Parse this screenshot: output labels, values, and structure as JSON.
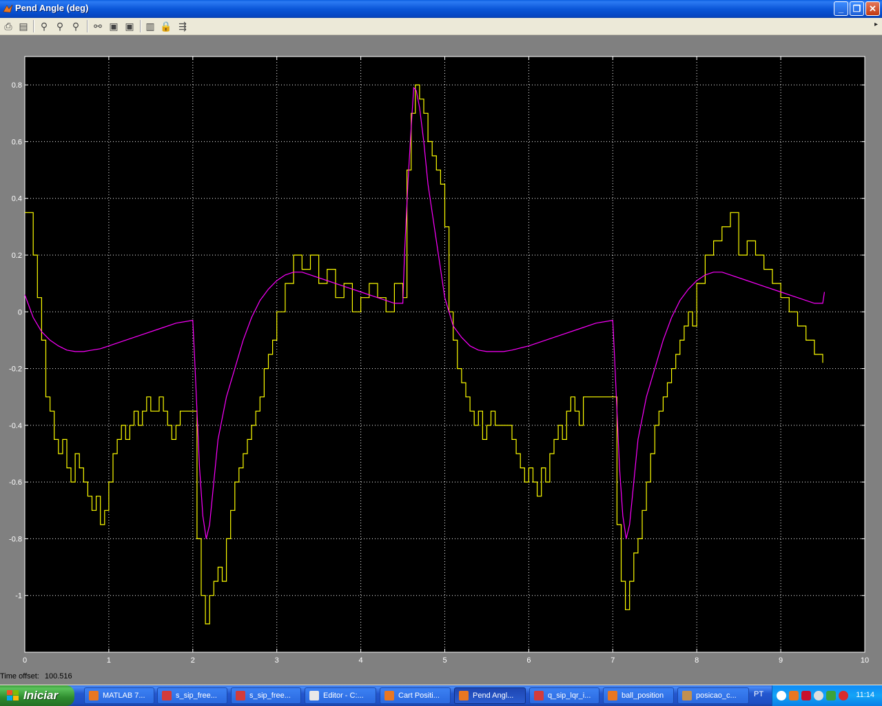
{
  "window": {
    "title": "Pend Angle (deg)",
    "minimize_glyph": "_",
    "maximize_glyph": "❐",
    "close_glyph": "✕"
  },
  "toolbar": {
    "buttons": [
      {
        "name": "print-icon",
        "glyph": "⎙"
      },
      {
        "name": "parameters-icon",
        "glyph": "▤"
      },
      {
        "name": "zoom-icon",
        "glyph": "⚲"
      },
      {
        "name": "zoom-x-icon",
        "glyph": "⚲"
      },
      {
        "name": "zoom-y-icon",
        "glyph": "⚲"
      },
      {
        "name": "autoscale-icon",
        "glyph": "⚯"
      },
      {
        "name": "save-axes-icon",
        "glyph": "▣"
      },
      {
        "name": "restore-axes-icon",
        "glyph": "▣"
      },
      {
        "name": "float-icon",
        "glyph": "▥"
      },
      {
        "name": "lock-icon",
        "glyph": "🔒"
      },
      {
        "name": "signal-selection-icon",
        "glyph": "⇶"
      }
    ],
    "overflow_glyph": "▸"
  },
  "time_offset": {
    "label": "Time offset:",
    "value": "100.516"
  },
  "colors": {
    "figure_bg": "#808080",
    "axes_bg": "#000000",
    "grid": "#FFFFFF",
    "series1": "#FFFF00",
    "series2": "#FF00FF"
  },
  "chart_data": {
    "type": "line",
    "title": "",
    "xlabel": "",
    "ylabel": "",
    "xlim": [
      0,
      10
    ],
    "ylim": [
      -1.2,
      0.9
    ],
    "xticks": [
      "0",
      "1",
      "2",
      "3",
      "4",
      "5",
      "6",
      "7",
      "8",
      "9",
      "10"
    ],
    "yticks": [
      "-1",
      "-0.8",
      "-0.6",
      "-0.4",
      "-0.2",
      "0",
      "0.2",
      "0.4",
      "0.6",
      "0.8"
    ],
    "grid": true,
    "series": [
      {
        "color": "yellow",
        "style": "step",
        "x": [
          0.0,
          0.1,
          0.15,
          0.2,
          0.25,
          0.3,
          0.35,
          0.4,
          0.45,
          0.5,
          0.55,
          0.6,
          0.65,
          0.7,
          0.75,
          0.8,
          0.85,
          0.9,
          0.95,
          1.0,
          1.05,
          1.1,
          1.15,
          1.2,
          1.25,
          1.3,
          1.35,
          1.4,
          1.45,
          1.5,
          1.55,
          1.6,
          1.65,
          1.7,
          1.75,
          1.8,
          1.85,
          1.9,
          1.95,
          2.0,
          2.05,
          2.1,
          2.15,
          2.2,
          2.25,
          2.3,
          2.35,
          2.4,
          2.45,
          2.5,
          2.55,
          2.6,
          2.65,
          2.7,
          2.75,
          2.8,
          2.85,
          2.9,
          2.95,
          3.0,
          3.1,
          3.2,
          3.3,
          3.4,
          3.5,
          3.6,
          3.7,
          3.8,
          3.9,
          4.0,
          4.1,
          4.2,
          4.3,
          4.4,
          4.5,
          4.55,
          4.6,
          4.65,
          4.7,
          4.75,
          4.8,
          4.85,
          4.9,
          4.95,
          5.0,
          5.05,
          5.1,
          5.15,
          5.2,
          5.25,
          5.3,
          5.35,
          5.4,
          5.45,
          5.5,
          5.55,
          5.6,
          5.65,
          5.7,
          5.75,
          5.8,
          5.85,
          5.9,
          5.95,
          6.0,
          6.05,
          6.1,
          6.15,
          6.2,
          6.25,
          6.3,
          6.35,
          6.4,
          6.45,
          6.5,
          6.55,
          6.6,
          6.65,
          6.7,
          6.75,
          6.8,
          6.85,
          6.9,
          6.95,
          7.0,
          7.05,
          7.1,
          7.15,
          7.2,
          7.25,
          7.3,
          7.35,
          7.4,
          7.45,
          7.5,
          7.55,
          7.6,
          7.65,
          7.7,
          7.75,
          7.8,
          7.85,
          7.9,
          7.95,
          8.0,
          8.1,
          8.2,
          8.3,
          8.4,
          8.5,
          8.6,
          8.7,
          8.8,
          8.9,
          9.0,
          9.1,
          9.2,
          9.3,
          9.4,
          9.5
        ],
        "y": [
          0.35,
          0.2,
          0.05,
          -0.1,
          -0.3,
          -0.35,
          -0.45,
          -0.5,
          -0.45,
          -0.55,
          -0.6,
          -0.5,
          -0.55,
          -0.6,
          -0.65,
          -0.7,
          -0.65,
          -0.75,
          -0.7,
          -0.6,
          -0.5,
          -0.45,
          -0.4,
          -0.45,
          -0.4,
          -0.35,
          -0.4,
          -0.35,
          -0.3,
          -0.35,
          -0.35,
          -0.3,
          -0.35,
          -0.4,
          -0.45,
          -0.4,
          -0.35,
          -0.35,
          -0.35,
          -0.35,
          -0.8,
          -1.0,
          -1.1,
          -1.0,
          -0.95,
          -0.9,
          -0.95,
          -0.8,
          -0.7,
          -0.6,
          -0.55,
          -0.5,
          -0.45,
          -0.4,
          -0.35,
          -0.3,
          -0.2,
          -0.15,
          -0.1,
          0.0,
          0.1,
          0.2,
          0.15,
          0.2,
          0.1,
          0.15,
          0.05,
          0.1,
          0.0,
          0.05,
          0.1,
          0.05,
          0.0,
          0.1,
          0.05,
          0.5,
          0.7,
          0.8,
          0.75,
          0.7,
          0.6,
          0.55,
          0.5,
          0.45,
          0.3,
          0.0,
          -0.1,
          -0.2,
          -0.25,
          -0.3,
          -0.35,
          -0.4,
          -0.35,
          -0.45,
          -0.4,
          -0.35,
          -0.4,
          -0.4,
          -0.4,
          -0.4,
          -0.45,
          -0.5,
          -0.55,
          -0.6,
          -0.55,
          -0.6,
          -0.65,
          -0.55,
          -0.6,
          -0.5,
          -0.45,
          -0.4,
          -0.45,
          -0.35,
          -0.3,
          -0.35,
          -0.4,
          -0.3,
          -0.3,
          -0.3,
          -0.3,
          -0.3,
          -0.3,
          -0.3,
          -0.3,
          -0.75,
          -0.95,
          -1.05,
          -0.95,
          -0.85,
          -0.8,
          -0.7,
          -0.6,
          -0.5,
          -0.4,
          -0.35,
          -0.3,
          -0.25,
          -0.2,
          -0.15,
          -0.1,
          -0.05,
          0.0,
          -0.05,
          0.1,
          0.2,
          0.25,
          0.3,
          0.35,
          0.2,
          0.25,
          0.2,
          0.15,
          0.1,
          0.05,
          0.0,
          -0.05,
          -0.1,
          -0.15,
          -0.18
        ],
        "name": ""
      },
      {
        "color": "magenta",
        "style": "line",
        "x": [
          0.0,
          0.1,
          0.2,
          0.3,
          0.4,
          0.5,
          0.6,
          0.7,
          0.8,
          0.9,
          1.0,
          1.2,
          1.4,
          1.6,
          1.8,
          2.0,
          2.02,
          2.05,
          2.08,
          2.12,
          2.16,
          2.2,
          2.25,
          2.3,
          2.4,
          2.5,
          2.6,
          2.7,
          2.8,
          2.9,
          3.0,
          3.1,
          3.2,
          3.3,
          3.4,
          3.6,
          3.8,
          4.0,
          4.2,
          4.4,
          4.5,
          4.52,
          4.56,
          4.6,
          4.63,
          4.66,
          4.7,
          4.75,
          4.8,
          4.9,
          5.0,
          5.1,
          5.2,
          5.3,
          5.4,
          5.5,
          5.6,
          5.7,
          5.8,
          6.0,
          6.2,
          6.4,
          6.6,
          6.8,
          7.0,
          7.02,
          7.05,
          7.08,
          7.12,
          7.16,
          7.2,
          7.25,
          7.3,
          7.4,
          7.5,
          7.6,
          7.7,
          7.8,
          7.9,
          8.0,
          8.1,
          8.2,
          8.3,
          8.4,
          8.6,
          8.8,
          9.0,
          9.2,
          9.4,
          9.5,
          9.52
        ],
        "y": [
          0.06,
          -0.02,
          -0.07,
          -0.1,
          -0.12,
          -0.135,
          -0.14,
          -0.14,
          -0.135,
          -0.13,
          -0.12,
          -0.1,
          -0.08,
          -0.06,
          -0.04,
          -0.03,
          -0.15,
          -0.35,
          -0.55,
          -0.72,
          -0.8,
          -0.75,
          -0.6,
          -0.45,
          -0.3,
          -0.2,
          -0.1,
          -0.02,
          0.04,
          0.08,
          0.11,
          0.13,
          0.14,
          0.14,
          0.13,
          0.11,
          0.09,
          0.07,
          0.05,
          0.03,
          0.03,
          0.2,
          0.45,
          0.65,
          0.79,
          0.78,
          0.72,
          0.6,
          0.45,
          0.25,
          0.05,
          -0.05,
          -0.09,
          -0.12,
          -0.135,
          -0.14,
          -0.14,
          -0.14,
          -0.135,
          -0.12,
          -0.1,
          -0.08,
          -0.06,
          -0.04,
          -0.03,
          -0.15,
          -0.35,
          -0.55,
          -0.72,
          -0.8,
          -0.75,
          -0.6,
          -0.45,
          -0.3,
          -0.2,
          -0.1,
          -0.02,
          0.04,
          0.08,
          0.11,
          0.13,
          0.14,
          0.14,
          0.13,
          0.11,
          0.09,
          0.07,
          0.05,
          0.03,
          0.03,
          0.07
        ],
        "name": ""
      }
    ]
  },
  "taskbar": {
    "start_label": "Iniciar",
    "tasks": [
      {
        "label": "MATLAB 7...",
        "color": "#E87722"
      },
      {
        "label": "s_sip_free...",
        "color": "#D23C3C"
      },
      {
        "label": "s_sip_free...",
        "color": "#D23C3C"
      },
      {
        "label": "Editor - C:...",
        "color": "#E8E8E8"
      },
      {
        "label": "Cart Positi...",
        "color": "#E87722"
      },
      {
        "label": "Pend Angl...",
        "color": "#E87722",
        "active": true
      },
      {
        "label": "q_sip_lqr_i...",
        "color": "#D23C3C"
      },
      {
        "label": "ball_position",
        "color": "#E87722"
      },
      {
        "label": "posicao_c...",
        "color": "#C09050"
      }
    ],
    "language": "PT",
    "clock": "11:14"
  }
}
